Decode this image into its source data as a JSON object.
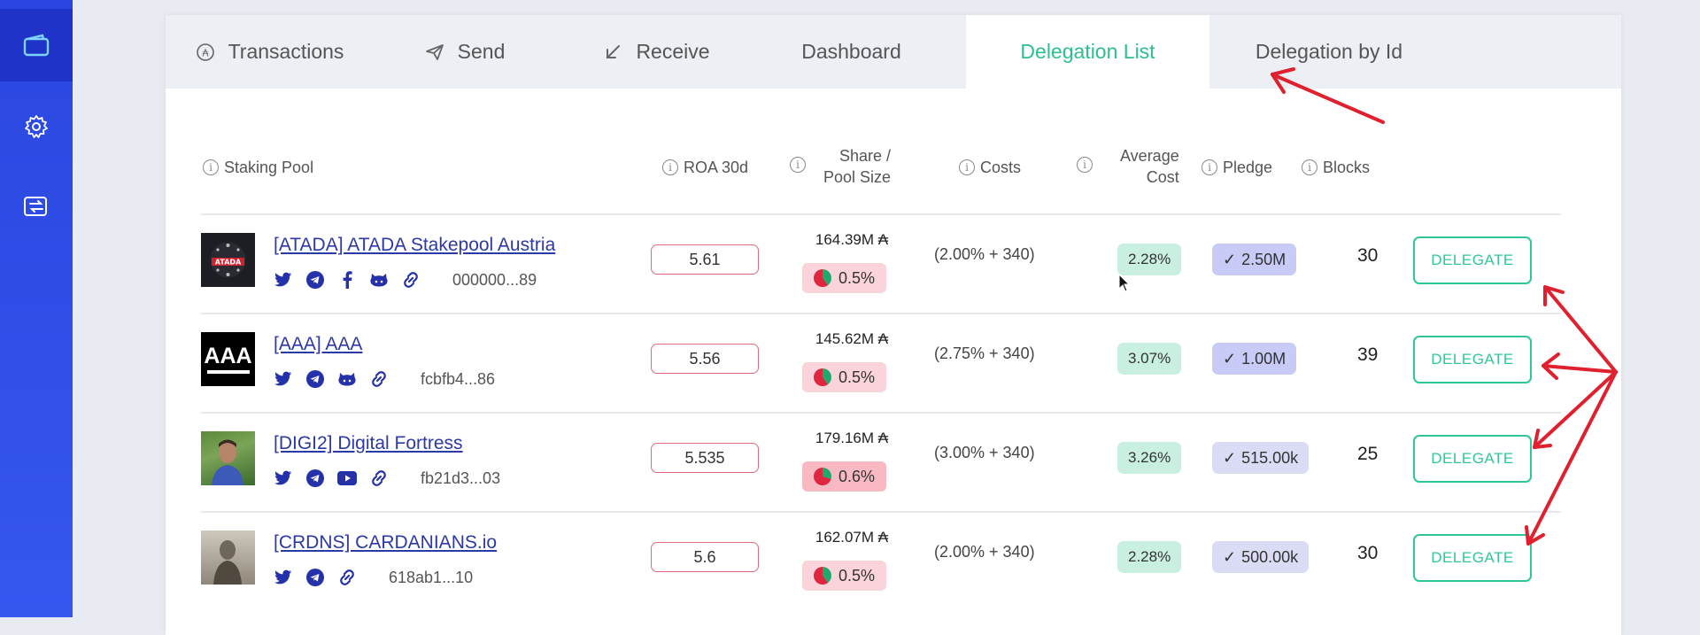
{
  "sidebar": {
    "items": [
      {
        "icon": "wallet-icon",
        "active": true
      },
      {
        "icon": "gear-icon",
        "active": false
      },
      {
        "icon": "exchange-icon",
        "active": false
      }
    ]
  },
  "tabs": [
    {
      "label": "Transactions",
      "icon": "transactions-icon"
    },
    {
      "label": "Send",
      "icon": "send-icon"
    },
    {
      "label": "Receive",
      "icon": "receive-icon"
    },
    {
      "label": "Dashboard"
    },
    {
      "label": "Delegation List",
      "active": true
    },
    {
      "label": "Delegation by Id"
    }
  ],
  "headers": {
    "pool": "Staking Pool",
    "roa": "ROA 30d",
    "share_line1": "Share /",
    "share_line2": "Pool Size",
    "costs": "Costs",
    "avg_line1": "Average",
    "avg_line2": "Cost",
    "pledge": "Pledge",
    "blocks": "Blocks"
  },
  "rows": [
    {
      "name": "[ATADA] ATADA Stakepool Austria",
      "id": "000000...89",
      "roa": "5.61",
      "size": "164.39M ₳",
      "share": "0.5%",
      "costs": "(2.00% + 340)",
      "avg": "2.28%",
      "pledge": "2.50M",
      "blocks": "30",
      "action": "DELEGATE",
      "icons": [
        "twitter-icon",
        "telegram-icon",
        "facebook-icon",
        "github-icon",
        "link-icon"
      ]
    },
    {
      "name": "[AAA] AAA",
      "id": "fcbfb4...86",
      "roa": "5.56",
      "size": "145.62M ₳",
      "share": "0.5%",
      "costs": "(2.75% + 340)",
      "avg": "3.07%",
      "pledge": "1.00M",
      "blocks": "39",
      "action": "DELEGATE",
      "icons": [
        "twitter-icon",
        "telegram-icon",
        "github-icon",
        "link-icon"
      ]
    },
    {
      "name": "[DIGI2] Digital Fortress",
      "id": "fb21d3...03",
      "roa": "5.535",
      "size": "179.16M ₳",
      "share": "0.6%",
      "costs": "(3.00% + 340)",
      "avg": "3.26%",
      "pledge": "515.00k",
      "blocks": "25",
      "action": "DELEGATE",
      "icons": [
        "twitter-icon",
        "telegram-icon",
        "youtube-icon",
        "link-icon"
      ]
    },
    {
      "name": "[CRDNS] CARDANIANS.io",
      "id": "618ab1...10",
      "roa": "5.6",
      "size": "162.07M ₳",
      "share": "0.5%",
      "costs": "(2.00% + 340)",
      "avg": "2.28%",
      "pledge": "500.00k",
      "blocks": "30",
      "action": "DELEGATE",
      "icons": [
        "twitter-icon",
        "telegram-icon",
        "link-icon"
      ]
    }
  ],
  "logos": {
    "aaa_text": "AAA",
    "atada_text": "ATADA"
  },
  "colors": {
    "accent": "#2dbf8e",
    "sidebar": "#2b46e0",
    "link": "#2c39a6",
    "annotation": "#e0202e"
  }
}
